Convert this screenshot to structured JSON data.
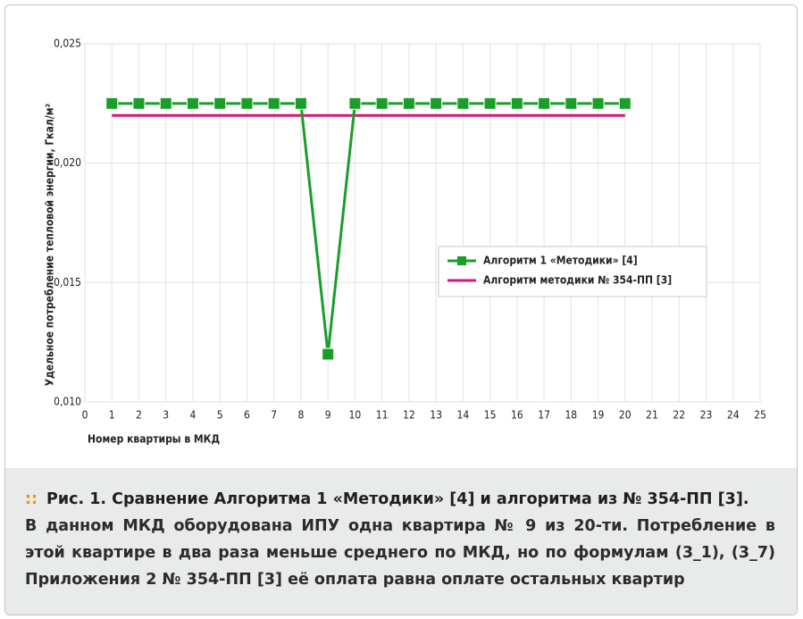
{
  "chart_data": {
    "type": "line",
    "x": [
      1,
      2,
      3,
      4,
      5,
      6,
      7,
      8,
      9,
      10,
      11,
      12,
      13,
      14,
      15,
      16,
      17,
      18,
      19,
      20
    ],
    "series": [
      {
        "name": "Алгоритм 1 «Методики» [4]",
        "color": "#1a9e2a",
        "marker": "square",
        "values": [
          0.0225,
          0.0225,
          0.0225,
          0.0225,
          0.0225,
          0.0225,
          0.0225,
          0.0225,
          0.012,
          0.0225,
          0.0225,
          0.0225,
          0.0225,
          0.0225,
          0.0225,
          0.0225,
          0.0225,
          0.0225,
          0.0225,
          0.0225
        ]
      },
      {
        "name": "Алгоритм методики № 354-ПП [3]",
        "color": "#d6157f",
        "values": [
          0.022,
          0.022,
          0.022,
          0.022,
          0.022,
          0.022,
          0.022,
          0.022,
          0.022,
          0.022,
          0.022,
          0.022,
          0.022,
          0.022,
          0.022,
          0.022,
          0.022,
          0.022,
          0.022,
          0.022
        ]
      }
    ],
    "xlim": [
      0,
      25
    ],
    "xticks": [
      0,
      1,
      2,
      3,
      4,
      5,
      6,
      7,
      8,
      9,
      10,
      11,
      12,
      13,
      14,
      15,
      16,
      17,
      18,
      19,
      20,
      21,
      22,
      23,
      24,
      25
    ],
    "ylim": [
      0.01,
      0.025
    ],
    "yticks": [
      {
        "value": 0.01,
        "label": "0,010"
      },
      {
        "value": 0.015,
        "label": "0,015"
      },
      {
        "value": 0.02,
        "label": "0,020"
      },
      {
        "value": 0.025,
        "label": "0,025"
      }
    ],
    "xlabel": "Номер квартиры в МКД",
    "ylabel": "Удельное потребление тепловой энергии, Гкал/м²",
    "grid": true
  },
  "caption": {
    "title": "Рис. 1. Сравнение Алгоритма 1 «Методики» [4] и алгоритма из № 354-ПП [3].",
    "text": "В данном МКД оборудована ИПУ одна квартира № 9 из 20-ти. Потребление в этой квартире в два раза меньше среднего по МКД, но по формулам (3_1), (3_7) Приложения 2 № 354-ПП [3] её оплата равна оплате остальных квартир"
  }
}
